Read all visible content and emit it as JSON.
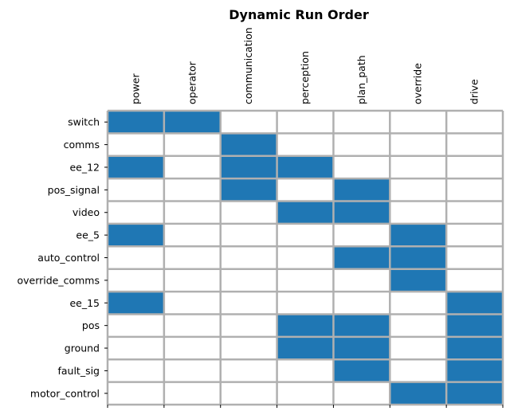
{
  "chart_data": {
    "type": "heatmap",
    "title": "Dynamic Run Order",
    "xlabel": "",
    "ylabel": "",
    "columns": [
      "power",
      "operator",
      "communication",
      "perception",
      "plan_path",
      "override",
      "drive"
    ],
    "rows": [
      "switch",
      "comms",
      "ee_12",
      "pos_signal",
      "video",
      "ee_5",
      "auto_control",
      "override_comms",
      "ee_15",
      "pos",
      "ground",
      "fault_sig",
      "motor_control"
    ],
    "matrix": [
      [
        1,
        1,
        0,
        0,
        0,
        0,
        0
      ],
      [
        0,
        0,
        1,
        0,
        0,
        0,
        0
      ],
      [
        1,
        0,
        1,
        1,
        0,
        0,
        0
      ],
      [
        0,
        0,
        1,
        0,
        1,
        0,
        0
      ],
      [
        0,
        0,
        0,
        1,
        1,
        0,
        0
      ],
      [
        1,
        0,
        0,
        0,
        0,
        1,
        0
      ],
      [
        0,
        0,
        0,
        0,
        1,
        1,
        0
      ],
      [
        0,
        0,
        0,
        0,
        0,
        1,
        0
      ],
      [
        1,
        0,
        0,
        0,
        0,
        0,
        1
      ],
      [
        0,
        0,
        0,
        1,
        1,
        0,
        1
      ],
      [
        0,
        0,
        0,
        1,
        1,
        0,
        1
      ],
      [
        0,
        0,
        0,
        0,
        1,
        0,
        1
      ],
      [
        0,
        0,
        0,
        0,
        0,
        1,
        1
      ]
    ],
    "colors": {
      "active": "#1f77b4",
      "inactive": "#ffffff",
      "grid": "#b0b0b0"
    },
    "grid": true,
    "x_ticks_position": "top"
  }
}
